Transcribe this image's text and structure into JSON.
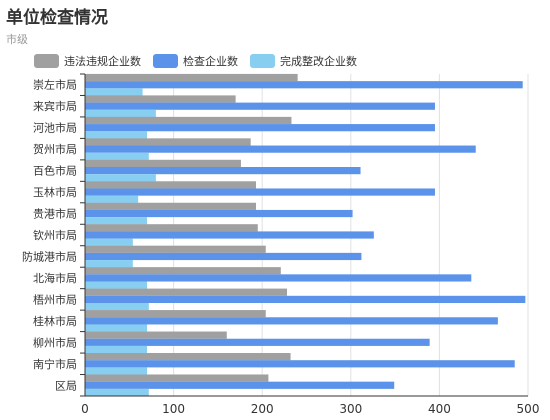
{
  "header": {
    "title": "单位检查情况",
    "subtitle": "市级"
  },
  "chart_data": {
    "type": "bar",
    "orientation": "horizontal",
    "categories": [
      "崇左市局",
      "来宾市局",
      "河池市局",
      "贺州市局",
      "百色市局",
      "玉林市局",
      "贵港市局",
      "钦州市局",
      "防城港市局",
      "北海市局",
      "梧州市局",
      "桂林市局",
      "柳州市局",
      "南宁市局",
      "区局"
    ],
    "series": [
      {
        "name": "违法违规企业数",
        "color": "#a0a0a0",
        "values": [
          240,
          170,
          233,
          187,
          176,
          193,
          193,
          195,
          204,
          221,
          228,
          204,
          160,
          232,
          207
        ]
      },
      {
        "name": "检查企业数",
        "color": "#5b93ea",
        "values": [
          494,
          395,
          395,
          441,
          311,
          395,
          302,
          326,
          312,
          436,
          497,
          466,
          389,
          485,
          349
        ]
      },
      {
        "name": "完成整改企业数",
        "color": "#87cef0",
        "values": [
          65,
          80,
          70,
          72,
          80,
          60,
          70,
          54,
          54,
          70,
          72,
          70,
          70,
          70,
          72
        ]
      }
    ],
    "xlim": [
      0,
      500
    ],
    "xticks": [
      0,
      100,
      200,
      300,
      400,
      500
    ],
    "grid": true,
    "legend_position": "top"
  }
}
